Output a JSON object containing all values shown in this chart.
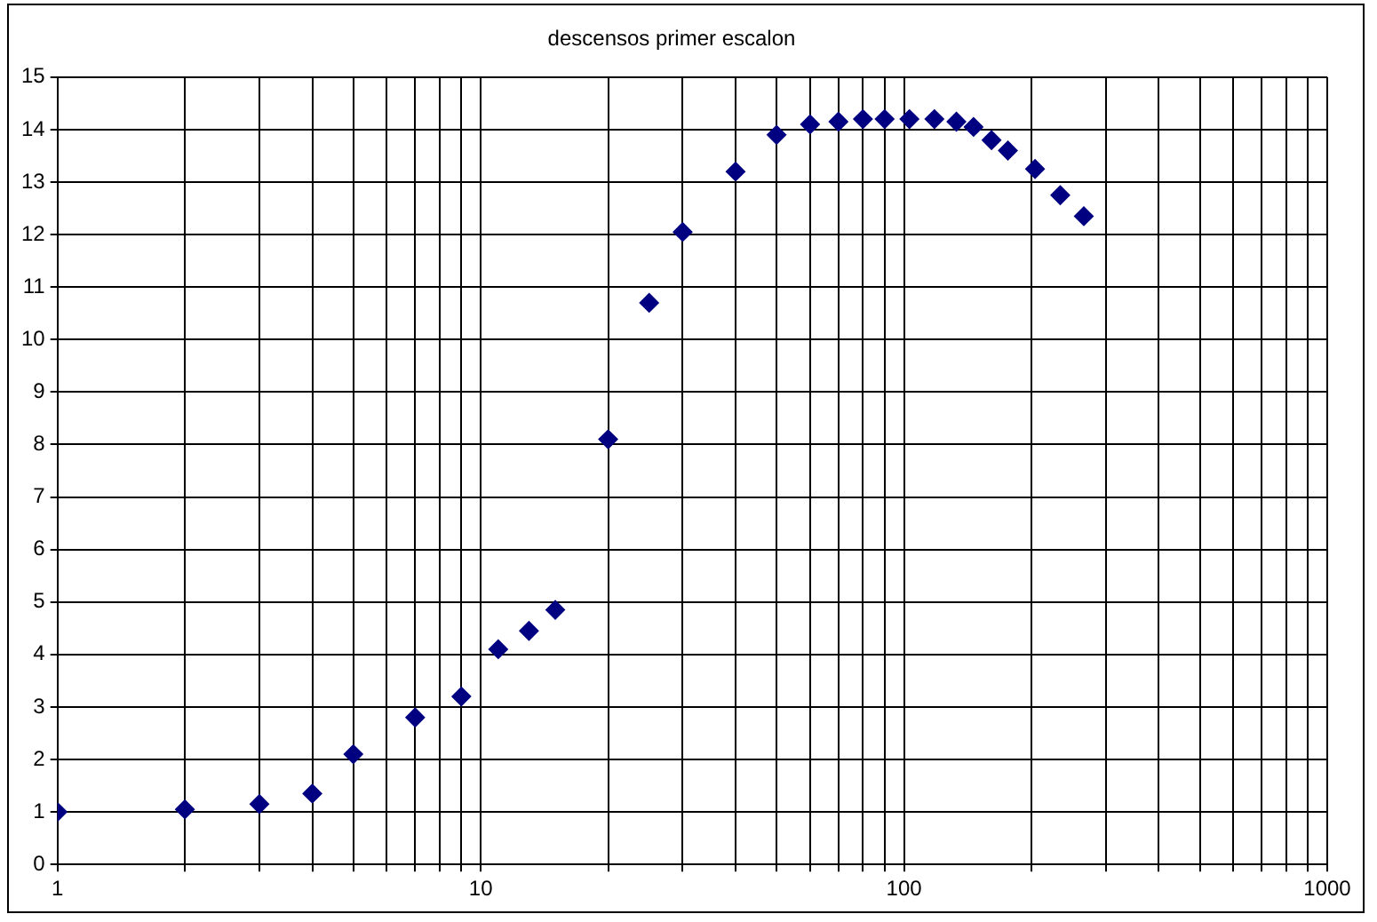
{
  "chart_data": {
    "type": "scatter",
    "title": "descensos primer escalon",
    "log": "x",
    "grid": true,
    "marker": "diamond",
    "legend": false,
    "xlim": [
      1,
      1000
    ],
    "ylim": [
      0,
      15
    ],
    "xticks": [
      1,
      {
        "value": 2,
        "label": null
      },
      {
        "value": 3,
        "label": null
      },
      {
        "value": 4,
        "label": null
      },
      {
        "value": 5,
        "label": null
      },
      {
        "value": 6,
        "label": null
      },
      {
        "value": 7,
        "label": null
      },
      {
        "value": 8,
        "label": null
      },
      {
        "value": 9,
        "label": null
      },
      10,
      {
        "value": 20,
        "label": null
      },
      {
        "value": 30,
        "label": null
      },
      {
        "value": 40,
        "label": null
      },
      {
        "value": 50,
        "label": null
      },
      {
        "value": 60,
        "label": null
      },
      {
        "value": 70,
        "label": null
      },
      {
        "value": 80,
        "label": null
      },
      {
        "value": 90,
        "label": null
      },
      100,
      {
        "value": 200,
        "label": null
      },
      {
        "value": 300,
        "label": null
      },
      {
        "value": 400,
        "label": null
      },
      {
        "value": 500,
        "label": null
      },
      {
        "value": 600,
        "label": null
      },
      {
        "value": 700,
        "label": null
      },
      {
        "value": 800,
        "label": null
      },
      {
        "value": 900,
        "label": null
      },
      1000
    ],
    "yticks": [
      0,
      1,
      2,
      3,
      4,
      5,
      6,
      7,
      8,
      9,
      10,
      11,
      12,
      13,
      14,
      15
    ],
    "series": [
      {
        "color": "#000080",
        "x": [
          1,
          2,
          3,
          4,
          5,
          7,
          9,
          11,
          13,
          15,
          20,
          25,
          30,
          40,
          50,
          60,
          70,
          80,
          90,
          103,
          118,
          133,
          146,
          161,
          176,
          204,
          234,
          266
        ],
        "values": [
          1.0,
          1.05,
          1.15,
          1.35,
          2.1,
          2.8,
          3.2,
          4.1,
          4.45,
          4.85,
          8.1,
          10.7,
          12.05,
          13.2,
          13.9,
          14.1,
          14.15,
          14.2,
          14.2,
          14.2,
          14.2,
          14.15,
          14.05,
          13.8,
          13.6,
          13.25,
          12.75,
          12.35
        ]
      }
    ]
  }
}
